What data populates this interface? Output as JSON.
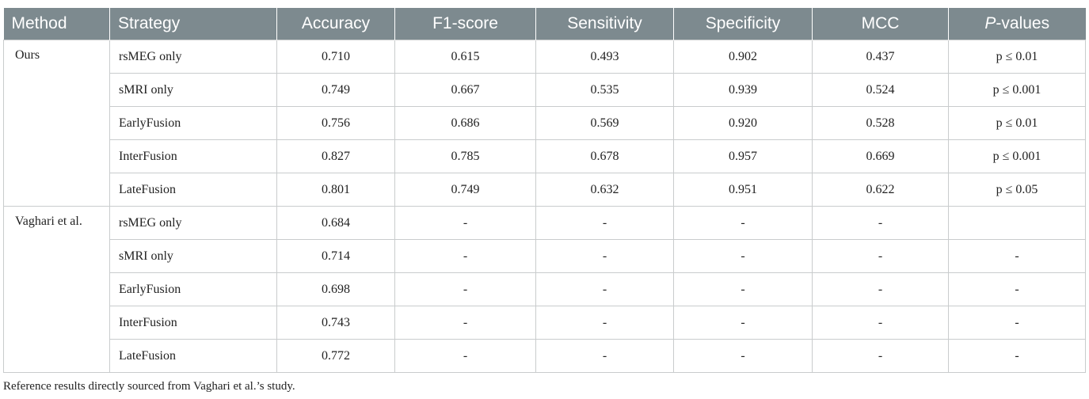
{
  "header": {
    "method": "Method",
    "strategy": "Strategy",
    "accuracy": "Accuracy",
    "f1": "F1-score",
    "sensitivity": "Sensitivity",
    "specificity": "Specificity",
    "mcc": "MCC",
    "pvalues_p": "P",
    "pvalues_rest": "-values"
  },
  "groups": [
    {
      "method": "Ours",
      "rows": [
        {
          "strategy": "rsMEG only",
          "accuracy": "0.710",
          "f1": "0.615",
          "sensitivity": "0.493",
          "specificity": "0.902",
          "mcc": "0.437",
          "pvalue": "p ≤ 0.01"
        },
        {
          "strategy": "sMRI only",
          "accuracy": "0.749",
          "f1": "0.667",
          "sensitivity": "0.535",
          "specificity": "0.939",
          "mcc": "0.524",
          "pvalue": "p ≤ 0.001"
        },
        {
          "strategy": "EarlyFusion",
          "accuracy": "0.756",
          "f1": "0.686",
          "sensitivity": "0.569",
          "specificity": "0.920",
          "mcc": "0.528",
          "pvalue": "p ≤ 0.01"
        },
        {
          "strategy": "InterFusion",
          "accuracy": "0.827",
          "f1": "0.785",
          "sensitivity": "0.678",
          "specificity": "0.957",
          "mcc": "0.669",
          "pvalue": "p ≤ 0.001"
        },
        {
          "strategy": "LateFusion",
          "accuracy": "0.801",
          "f1": "0.749",
          "sensitivity": "0.632",
          "specificity": "0.951",
          "mcc": "0.622",
          "pvalue": "p ≤ 0.05"
        }
      ]
    },
    {
      "method": "Vaghari et al.",
      "rows": [
        {
          "strategy": "rsMEG only",
          "accuracy": "0.684",
          "f1": "-",
          "sensitivity": "-",
          "specificity": "-",
          "mcc": "-",
          "pvalue": ""
        },
        {
          "strategy": "sMRI only",
          "accuracy": "0.714",
          "f1": "-",
          "sensitivity": "-",
          "specificity": "-",
          "mcc": "-",
          "pvalue": "-"
        },
        {
          "strategy": "EarlyFusion",
          "accuracy": "0.698",
          "f1": "-",
          "sensitivity": "-",
          "specificity": "-",
          "mcc": "-",
          "pvalue": "-"
        },
        {
          "strategy": "InterFusion",
          "accuracy": "0.743",
          "f1": "-",
          "sensitivity": "-",
          "specificity": "-",
          "mcc": "-",
          "pvalue": "-"
        },
        {
          "strategy": "LateFusion",
          "accuracy": "0.772",
          "f1": "-",
          "sensitivity": "-",
          "specificity": "-",
          "mcc": "-",
          "pvalue": "-"
        }
      ]
    }
  ],
  "footnote": "Reference results directly sourced from Vaghari et al.’s study."
}
